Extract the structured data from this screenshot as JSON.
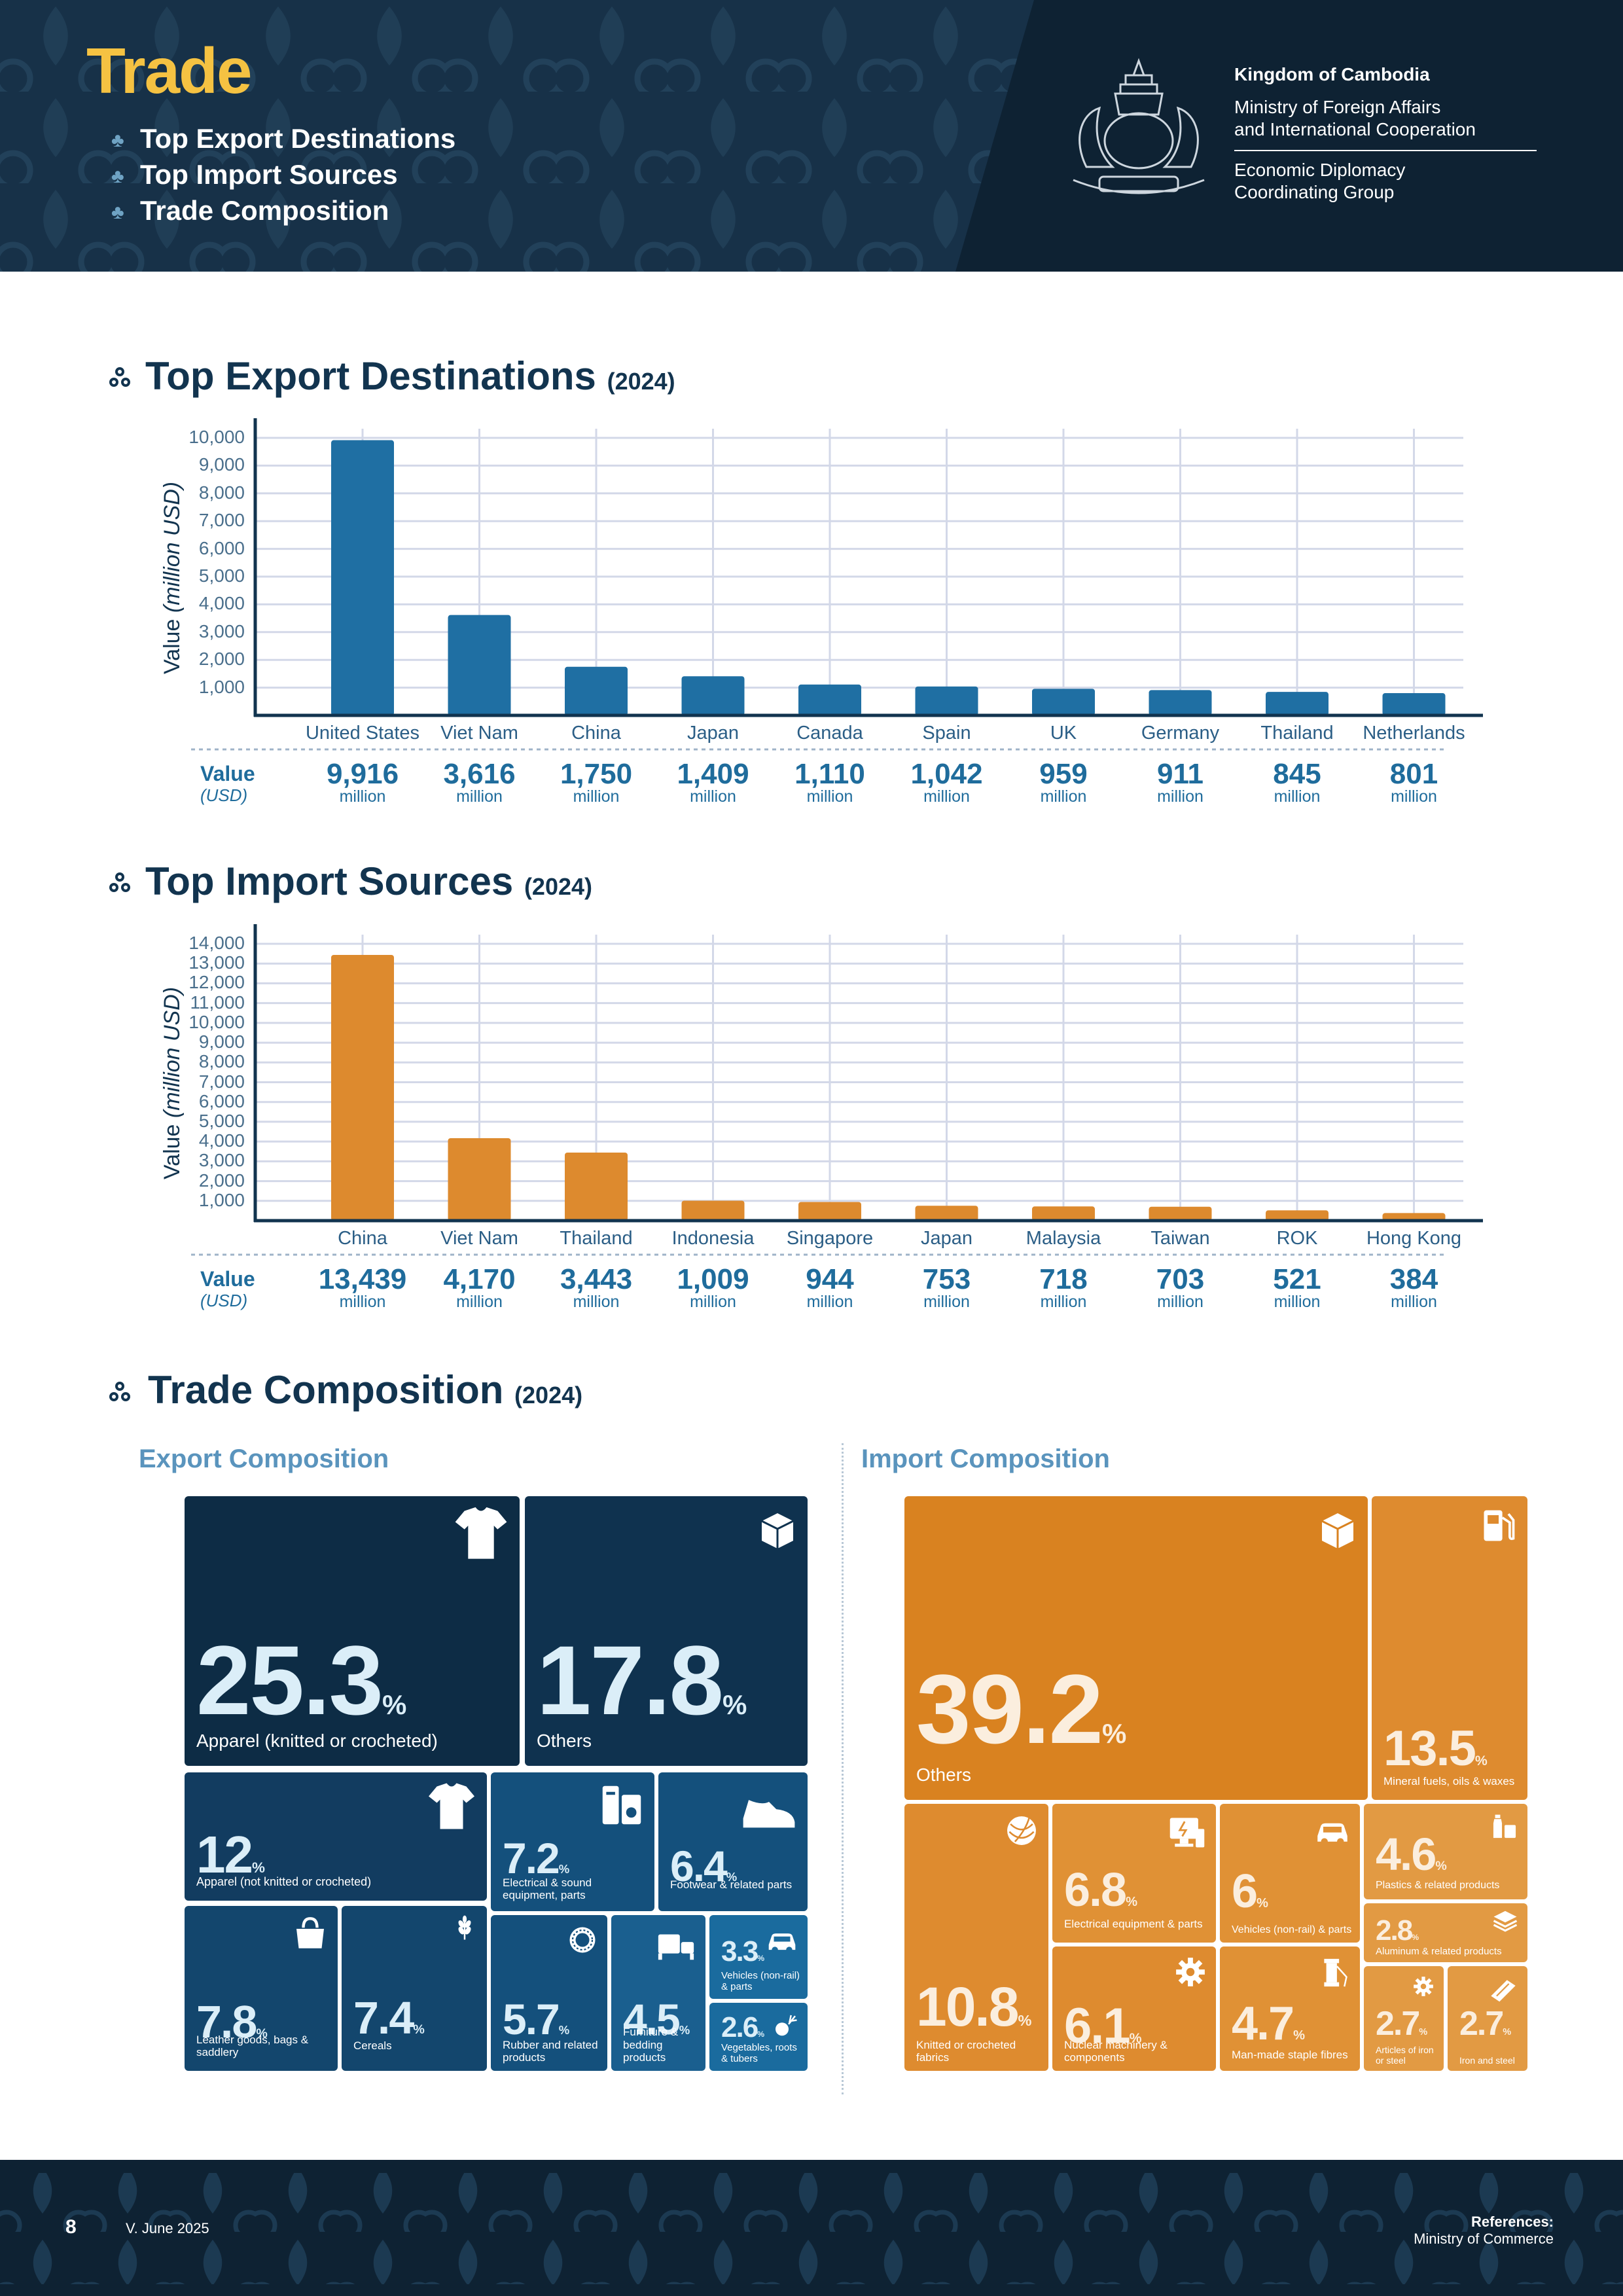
{
  "header": {
    "title": "Trade",
    "nav": [
      "Top Export Destinations",
      "Top Import Sources",
      "Trade Composition"
    ],
    "org_line1": "Kingdom of Cambodia",
    "org_line2a": "Ministry of Foreign Affairs",
    "org_line2b": "and International Cooperation",
    "org_line3a": "Economic Diplomacy",
    "org_line3b": "Coordinating Group"
  },
  "sections": {
    "exports_title": "Top Export Destinations",
    "exports_year": "(2024)",
    "imports_title": "Top Import Sources",
    "imports_year": "(2024)",
    "composition_title": "Trade Composition",
    "composition_year": "(2024)"
  },
  "chart_common": {
    "ylabel_main": "Value",
    "ylabel_unit": "(million USD)",
    "value_label": "Value",
    "value_sublabel": "(USD)",
    "unit_word": "million"
  },
  "chart_data": [
    {
      "type": "bar",
      "title": "Top Export Destinations",
      "ylabel": "Value (million USD)",
      "categories": [
        "United States",
        "Viet Nam",
        "China",
        "Japan",
        "Canada",
        "Spain",
        "UK",
        "Germany",
        "Thailand",
        "Netherlands"
      ],
      "values": [
        9916,
        3616,
        1750,
        1409,
        1110,
        1042,
        959,
        911,
        845,
        801
      ],
      "value_labels": [
        "9,916",
        "3,616",
        "1,750",
        "1,409",
        "1,110",
        "1,042",
        "959",
        "911",
        "845",
        "801"
      ],
      "ylim": [
        0,
        10000
      ],
      "yticks": [
        "1,000",
        "2,000",
        "3,000",
        "4,000",
        "5,000",
        "6,000",
        "7,000",
        "8,000",
        "9,000",
        "10,000"
      ],
      "grid": true,
      "color": "#1f6fa3"
    },
    {
      "type": "bar",
      "title": "Top Import Sources",
      "ylabel": "Value (million USD)",
      "categories": [
        "China",
        "Viet Nam",
        "Thailand",
        "Indonesia",
        "Singapore",
        "Japan",
        "Malaysia",
        "Taiwan",
        "ROK",
        "Hong Kong"
      ],
      "values": [
        13439,
        4170,
        3443,
        1009,
        944,
        753,
        718,
        703,
        521,
        384
      ],
      "value_labels": [
        "13,439",
        "4,170",
        "3,443",
        "1,009",
        "944",
        "753",
        "718",
        "703",
        "521",
        "384"
      ],
      "ylim": [
        0,
        14000
      ],
      "yticks": [
        "1,000",
        "2,000",
        "3,000",
        "4,000",
        "5,000",
        "6,000",
        "7,000",
        "8,000",
        "9,000",
        "10,000",
        "11,000",
        "12,000",
        "13,000",
        "14,000"
      ],
      "grid": true,
      "color": "#dd8a2e"
    }
  ],
  "export_composition": {
    "title": "Export Composition",
    "tiles": [
      {
        "pct": "25.3",
        "label": "Apparel (knitted or crocheted)",
        "icon": "tshirt-icon"
      },
      {
        "pct": "17.8",
        "label": "Others",
        "icon": "box-icon"
      },
      {
        "pct": "12",
        "label": "Apparel (not knitted or crocheted)",
        "icon": "tshirt-icon"
      },
      {
        "pct": "7.2",
        "label": "Electrical & sound equipment, parts",
        "icon": "speaker-icon"
      },
      {
        "pct": "6.4",
        "label": "Footwear & related parts",
        "icon": "shoe-icon"
      },
      {
        "pct": "7.8",
        "label": "Leather goods, bags & saddlery",
        "icon": "handbag-icon"
      },
      {
        "pct": "7.4",
        "label": "Cereals",
        "icon": "wheat-icon"
      },
      {
        "pct": "5.7",
        "label": "Rubber and related products",
        "icon": "tire-icon"
      },
      {
        "pct": "4.5",
        "label": "Furniture & bedding products",
        "icon": "bed-icon"
      },
      {
        "pct": "3.3",
        "label": "Vehicles (non-rail) & parts",
        "icon": "car-icon"
      },
      {
        "pct": "2.6",
        "label": "Vegetables, roots & tubers",
        "icon": "vegetable-icon"
      }
    ]
  },
  "import_composition": {
    "title": "Import Composition",
    "tiles": [
      {
        "pct": "39.2",
        "label": "Others",
        "icon": "box-icon"
      },
      {
        "pct": "13.5",
        "label": "Mineral fuels, oils & waxes",
        "icon": "fuel-pump-icon"
      },
      {
        "pct": "10.8",
        "label": "Knitted or crocheted fabrics",
        "icon": "yarn-icon"
      },
      {
        "pct": "6.8",
        "label": "Electrical equipment & parts",
        "icon": "monitor-icon"
      },
      {
        "pct": "6",
        "label": "Vehicles (non-rail) & parts",
        "icon": "car-icon"
      },
      {
        "pct": "4.6",
        "label": "Plastics & related products",
        "icon": "bottle-icon"
      },
      {
        "pct": "2.8",
        "label": "Aluminum & related products",
        "icon": "layers-icon"
      },
      {
        "pct": "6.1",
        "label": "Nuclear machinery & components",
        "icon": "gear-icon"
      },
      {
        "pct": "4.7",
        "label": "Man-made staple fibres",
        "icon": "spool-icon"
      },
      {
        "pct": "2.7",
        "label": "Articles of iron or steel",
        "icon": "gear-icon"
      },
      {
        "pct": "2.7",
        "label": "Iron and steel",
        "icon": "steel-bar-icon"
      }
    ]
  },
  "percent_sign": "%",
  "footer": {
    "page_number": "8",
    "version": "V. June 2025",
    "references_label": "References:",
    "references_source": "Ministry of Commerce"
  },
  "colors": {
    "navy": "#0e2233",
    "gold": "#f5c242",
    "export_bar": "#1f6fa3",
    "import_bar": "#dd8a2e"
  }
}
